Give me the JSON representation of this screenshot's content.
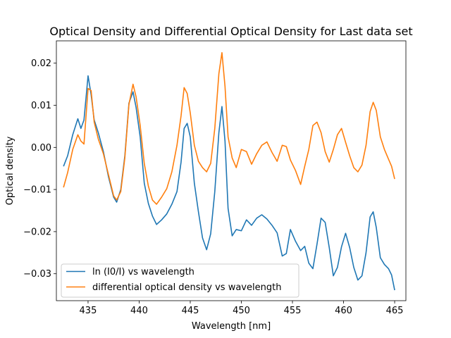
{
  "chart_data": {
    "type": "line",
    "title": "Optical Density and Differential Optical Density for Last data set",
    "xlabel": "Wavelength [nm]",
    "ylabel": "Optical density",
    "xlim": [
      431.9,
      466.1
    ],
    "ylim": [
      -0.0364,
      0.0253
    ],
    "xticks": [
      435,
      440,
      445,
      450,
      455,
      460,
      465
    ],
    "yticks": [
      -0.03,
      -0.02,
      -0.01,
      0.0,
      0.01,
      0.02
    ],
    "ytick_labels": [
      "−0.03",
      "−0.02",
      "−0.01",
      "0.00",
      "0.01",
      "0.02"
    ],
    "grid": false,
    "legend_position": "lower-left",
    "series": [
      {
        "name": "ln (I0/I) vs wavelength",
        "color": "#1f77b4",
        "x": [
          432.6,
          433.0,
          433.5,
          434.0,
          434.3,
          434.6,
          435.0,
          435.3,
          435.6,
          436.0,
          436.5,
          437.0,
          437.5,
          437.8,
          438.2,
          438.6,
          439.0,
          439.4,
          439.7,
          440.1,
          440.5,
          440.9,
          441.3,
          441.7,
          442.2,
          442.7,
          443.2,
          443.7,
          444.1,
          444.4,
          444.7,
          445.0,
          445.4,
          445.8,
          446.2,
          446.6,
          447.0,
          447.4,
          447.8,
          448.1,
          448.4,
          448.7,
          449.1,
          449.5,
          450.0,
          450.5,
          451.0,
          451.5,
          452.0,
          452.5,
          453.0,
          453.5,
          454.0,
          454.4,
          454.8,
          455.3,
          455.8,
          456.2,
          456.6,
          457.0,
          457.4,
          457.8,
          458.2,
          458.6,
          459.0,
          459.4,
          459.8,
          460.2,
          460.6,
          461.0,
          461.4,
          461.8,
          462.2,
          462.6,
          462.9,
          463.2,
          463.6,
          464.0,
          464.4,
          464.7,
          465.0
        ],
        "y": [
          -0.0045,
          -0.002,
          0.003,
          0.0068,
          0.0045,
          0.0065,
          0.017,
          0.0125,
          0.0065,
          0.0035,
          -0.001,
          -0.007,
          -0.0118,
          -0.013,
          -0.01,
          -0.002,
          0.0105,
          0.0132,
          0.0095,
          0.0025,
          -0.0085,
          -0.0133,
          -0.0163,
          -0.0183,
          -0.0172,
          -0.0158,
          -0.0135,
          -0.0105,
          -0.0035,
          0.0045,
          0.0057,
          0.0025,
          -0.0085,
          -0.0153,
          -0.0215,
          -0.0243,
          -0.0205,
          -0.0105,
          0.0035,
          0.0097,
          0.0015,
          -0.0145,
          -0.021,
          -0.0195,
          -0.0198,
          -0.0172,
          -0.0185,
          -0.0168,
          -0.016,
          -0.017,
          -0.0185,
          -0.0203,
          -0.0258,
          -0.0252,
          -0.0195,
          -0.0223,
          -0.0245,
          -0.0235,
          -0.0275,
          -0.0288,
          -0.023,
          -0.0168,
          -0.0178,
          -0.0238,
          -0.0305,
          -0.0285,
          -0.0236,
          -0.0204,
          -0.0238,
          -0.0285,
          -0.0315,
          -0.0305,
          -0.025,
          -0.0165,
          -0.0153,
          -0.019,
          -0.0262,
          -0.0278,
          -0.0288,
          -0.0303,
          -0.0339
        ]
      },
      {
        "name": "differential optical density vs wavelength",
        "color": "#ff7f0e",
        "x": [
          432.6,
          433.0,
          433.5,
          434.0,
          434.3,
          434.6,
          435.0,
          435.3,
          435.6,
          436.0,
          436.5,
          437.0,
          437.5,
          437.8,
          438.2,
          438.6,
          439.0,
          439.4,
          439.7,
          440.1,
          440.5,
          440.9,
          441.3,
          441.7,
          442.2,
          442.7,
          443.2,
          443.7,
          444.1,
          444.4,
          444.7,
          445.0,
          445.4,
          445.8,
          446.2,
          446.6,
          447.0,
          447.4,
          447.8,
          448.1,
          448.4,
          448.7,
          449.1,
          449.5,
          450.0,
          450.5,
          451.0,
          451.5,
          452.0,
          452.5,
          453.0,
          453.5,
          454.0,
          454.4,
          454.8,
          455.3,
          455.8,
          456.2,
          456.6,
          457.0,
          457.4,
          457.8,
          458.2,
          458.6,
          459.0,
          459.4,
          459.8,
          460.2,
          460.6,
          461.0,
          461.4,
          461.8,
          462.2,
          462.6,
          462.9,
          463.2,
          463.6,
          464.0,
          464.4,
          464.7,
          465.0
        ],
        "y": [
          -0.0095,
          -0.006,
          -0.0005,
          0.003,
          0.0015,
          0.0008,
          0.014,
          0.0135,
          0.006,
          0.002,
          -0.0015,
          -0.0065,
          -0.0115,
          -0.0125,
          -0.0105,
          -0.0025,
          0.0102,
          0.015,
          0.012,
          0.0052,
          -0.0038,
          -0.0092,
          -0.0125,
          -0.0135,
          -0.0118,
          -0.0098,
          -0.0058,
          0.0005,
          0.0075,
          0.0142,
          0.0128,
          0.0082,
          0.0005,
          -0.0033,
          -0.0048,
          -0.0058,
          -0.0038,
          0.0045,
          0.0175,
          0.0225,
          0.0145,
          0.0025,
          -0.0025,
          -0.0048,
          -0.0005,
          -0.001,
          -0.004,
          -0.0015,
          0.0005,
          0.0013,
          -0.0012,
          -0.0033,
          0.0005,
          0.0002,
          -0.003,
          -0.0055,
          -0.0088,
          -0.0045,
          -0.0005,
          0.0052,
          0.006,
          0.0035,
          -0.001,
          -0.0035,
          -0.0005,
          0.003,
          0.0045,
          0.0012,
          -0.002,
          -0.0048,
          -0.0058,
          -0.0042,
          0.0005,
          0.0085,
          0.0107,
          0.0088,
          0.0025,
          -0.0005,
          -0.0028,
          -0.0045,
          -0.0075
        ]
      }
    ]
  }
}
